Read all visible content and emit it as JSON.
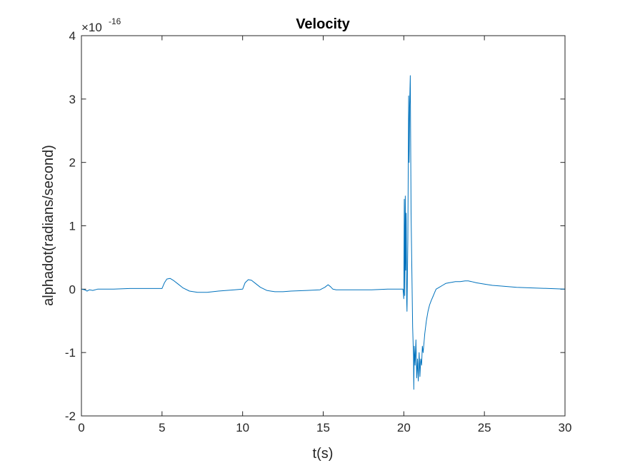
{
  "chart_data": {
    "type": "line",
    "title": "Velocity",
    "xlabel": "t(s)",
    "ylabel": "alphadot(radians/second)",
    "exponent_base": "×10",
    "exponent_power": "-16",
    "xlim": [
      0,
      30
    ],
    "ylim": [
      -2,
      4
    ],
    "xticks": [
      0,
      5,
      10,
      15,
      20,
      25,
      30
    ],
    "yticks": [
      -2,
      -1,
      0,
      1,
      2,
      3,
      4
    ],
    "xtick_labels": [
      "0",
      "5",
      "10",
      "15",
      "20",
      "25",
      "30"
    ],
    "ytick_labels": [
      "-2",
      "-1",
      "0",
      "1",
      "2",
      "3",
      "4"
    ],
    "grid": false,
    "series": [
      {
        "color": "#0072BD",
        "x": [
          0,
          0.2,
          0.35,
          0.5,
          0.7,
          1.0,
          2.0,
          3.0,
          4.0,
          5.0,
          5.15,
          5.3,
          5.5,
          5.7,
          6.0,
          6.3,
          6.7,
          7.2,
          7.8,
          8.5,
          9.0,
          9.5,
          10.0,
          10.15,
          10.35,
          10.55,
          10.8,
          11.1,
          11.5,
          12.0,
          12.5,
          13.0,
          14.0,
          14.8,
          15.1,
          15.3,
          15.45,
          15.6,
          15.8,
          16.2,
          17.0,
          18.0,
          19.0,
          19.95,
          20.0,
          20.03,
          20.06,
          20.09,
          20.12,
          20.15,
          20.18,
          20.2,
          20.25,
          20.3,
          20.33,
          20.36,
          20.4,
          20.45,
          20.5,
          20.55,
          20.6,
          20.62,
          20.65,
          20.7,
          20.75,
          20.8,
          20.85,
          20.9,
          20.95,
          21.0,
          21.05,
          21.1,
          21.15,
          21.2,
          21.3,
          21.4,
          21.5,
          21.6,
          21.7,
          21.8,
          21.9,
          22.0,
          22.2,
          22.4,
          22.6,
          22.8,
          23.0,
          23.2,
          23.5,
          23.8,
          24.0,
          24.2,
          24.5,
          25.0,
          25.5,
          26.0,
          27.0,
          28.0,
          29.0,
          30.0
        ],
        "y": [
          0,
          -0.01,
          -0.03,
          -0.01,
          -0.02,
          0,
          0,
          0.01,
          0.01,
          0.01,
          0.1,
          0.16,
          0.17,
          0.14,
          0.08,
          0.02,
          -0.03,
          -0.05,
          -0.05,
          -0.03,
          -0.02,
          -0.01,
          0,
          0.1,
          0.15,
          0.14,
          0.09,
          0.03,
          -0.02,
          -0.04,
          -0.04,
          -0.03,
          -0.02,
          -0.01,
          0.03,
          0.07,
          0.04,
          0,
          -0.01,
          -0.01,
          -0.01,
          -0.01,
          0,
          0,
          -0.15,
          1.42,
          -0.1,
          1.47,
          0.3,
          1.2,
          -0.2,
          -0.35,
          0.8,
          3.05,
          2.0,
          2.9,
          3.37,
          1.2,
          0.3,
          -0.6,
          -1.05,
          -1.58,
          -0.9,
          -1.2,
          -0.8,
          -1.4,
          -1.1,
          -1.45,
          -1.0,
          -1.38,
          -1.1,
          -1.2,
          -0.9,
          -1.0,
          -0.7,
          -0.5,
          -0.35,
          -0.25,
          -0.18,
          -0.12,
          -0.06,
          0,
          0.03,
          0.06,
          0.09,
          0.1,
          0.11,
          0.12,
          0.12,
          0.13,
          0.13,
          0.12,
          0.1,
          0.08,
          0.06,
          0.05,
          0.03,
          0.02,
          0.01,
          0
        ]
      }
    ]
  }
}
